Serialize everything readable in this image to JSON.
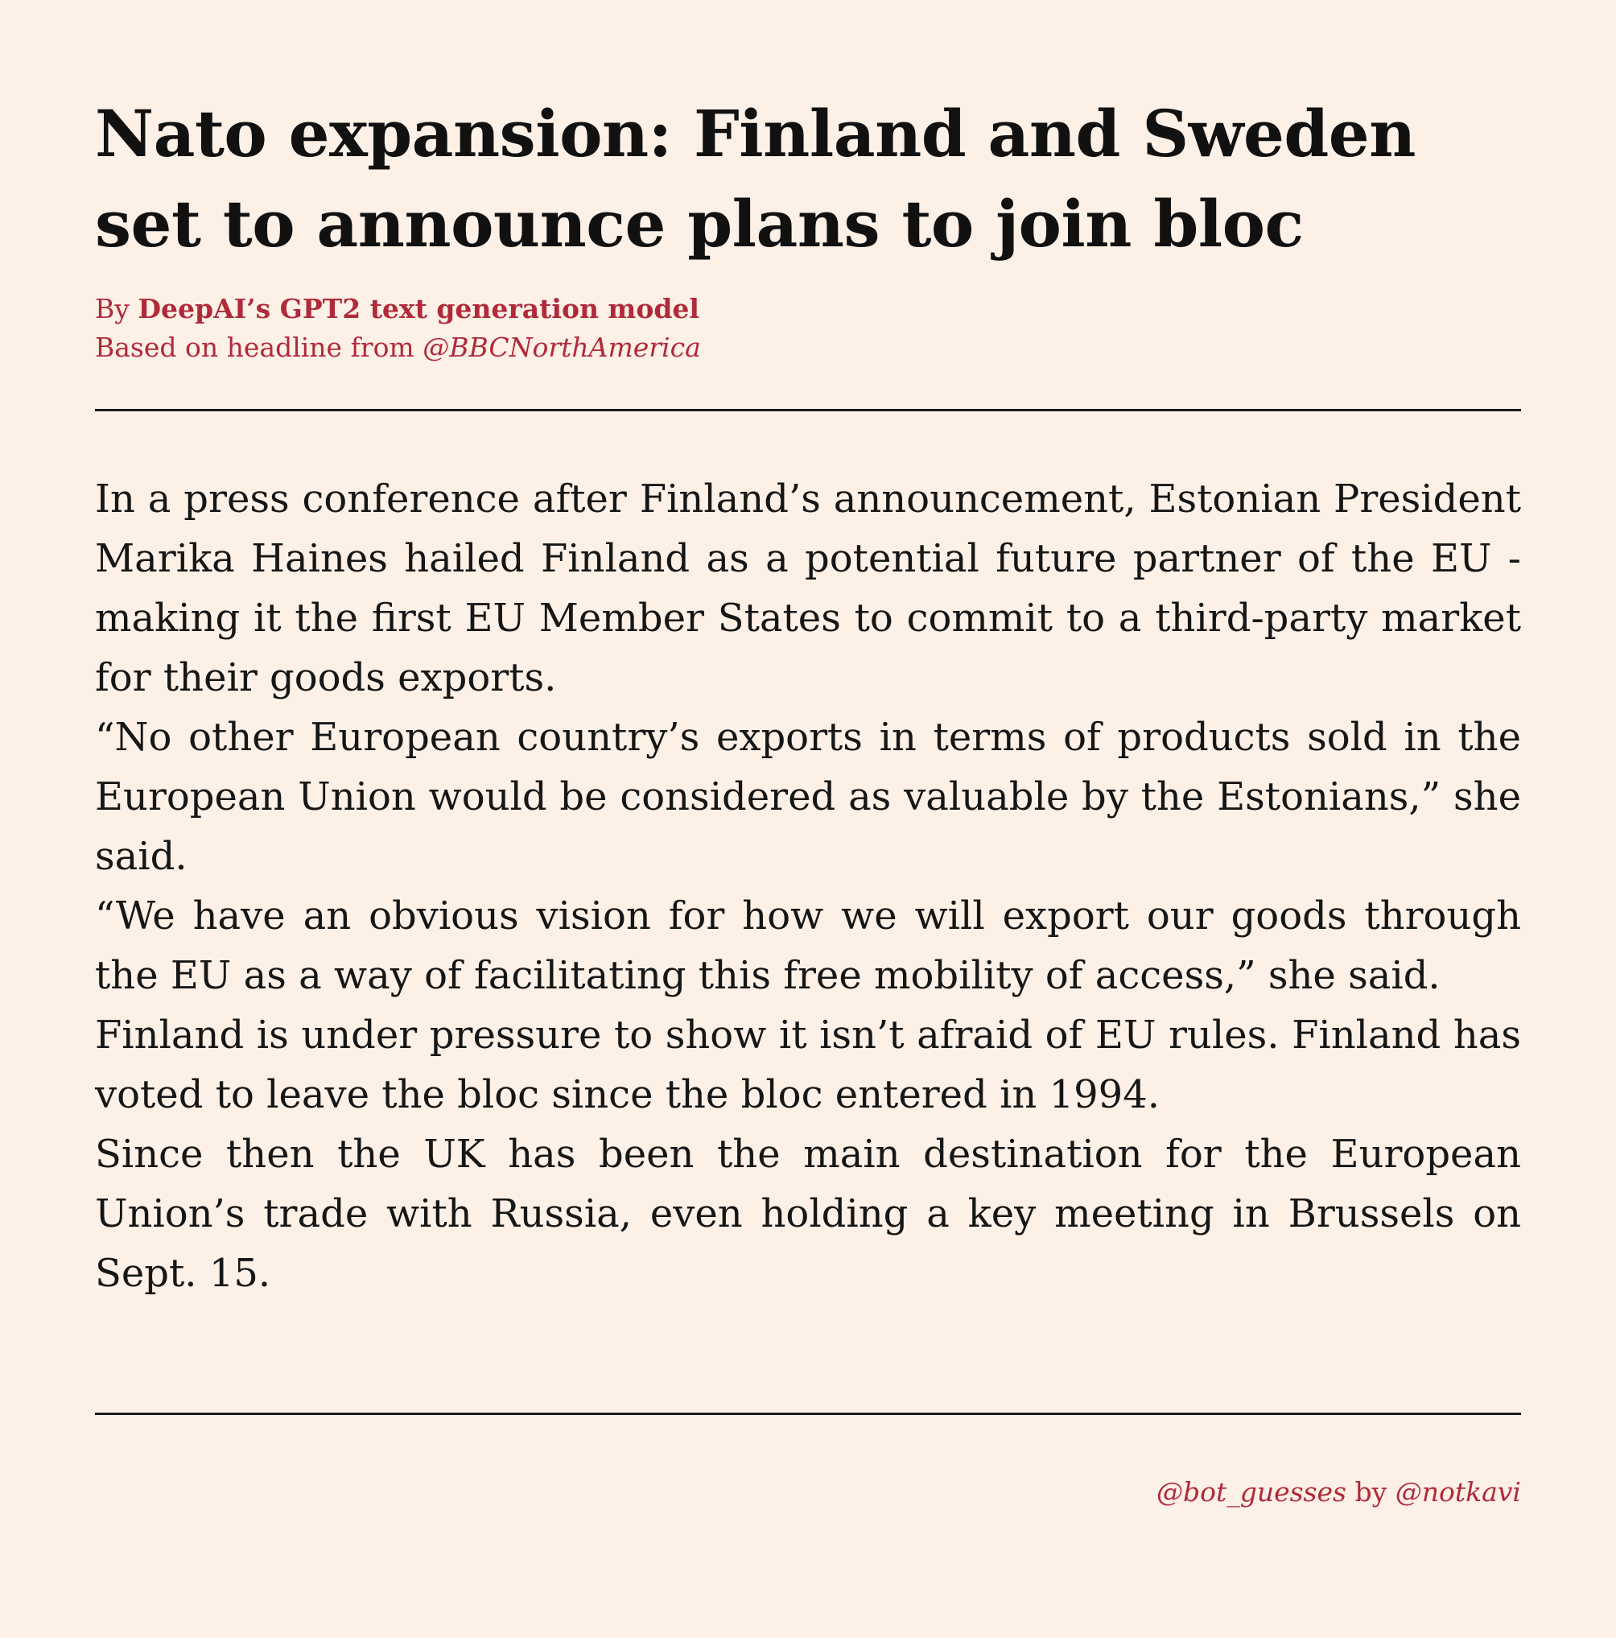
{
  "headline": "Nato expansion: Finland and Sweden set to announce plans to join bloc",
  "byline": {
    "by_label": "By",
    "author": "DeepAI’s GPT2 text generation model",
    "based_on_label": "Based on headline from",
    "source_handle": "@BBCNorthAmerica"
  },
  "article": {
    "paragraphs": [
      "In a press conference after Finland’s announcement, Estonian President Marika Haines hailed Finland as a potential future partner of the EU - making it the first EU Member States to commit to a third-party market for their goods exports.",
      "“No other European country’s exports in terms of products sold in the European Union would be considered as valuable by the Estonians,” she said.",
      "“We have an obvious vision for how we will export our goods through the EU as a way of facilitating this free mobility of access,” she said.",
      "Finland is under pressure to show it isn’t afraid of EU rules. Finland has voted to leave the bloc since the bloc entered in 1994.",
      "Since then the UK has been the main destination for the European Union’s trade with Russia, even holding a key meeting in Brussels on Sept. 15."
    ]
  },
  "credit": {
    "bot_handle": "@bot_guesses",
    "by_label": "by",
    "author_handle": "@notkavi"
  },
  "colors": {
    "background": "#fdf0e6",
    "accent": "#b02a3a",
    "text": "#141414"
  }
}
